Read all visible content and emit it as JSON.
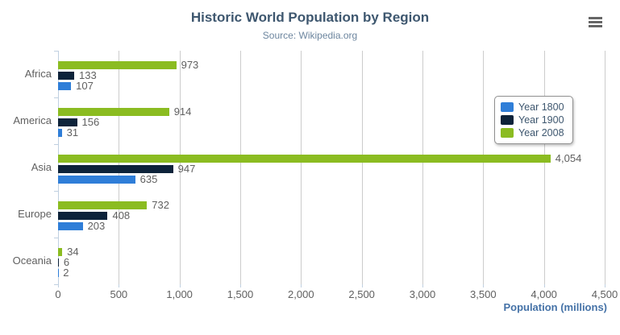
{
  "chart_data": {
    "type": "bar",
    "orientation": "horizontal",
    "title": "Historic World Population by Region",
    "subtitle": "Source: Wikipedia.org",
    "categories": [
      "Africa",
      "America",
      "Asia",
      "Europe",
      "Oceania"
    ],
    "series": [
      {
        "name": "Year 1800",
        "color": "#2f7ed8",
        "values": [
          107,
          31,
          635,
          203,
          2
        ]
      },
      {
        "name": "Year 1900",
        "color": "#0d233a",
        "values": [
          133,
          156,
          947,
          408,
          6
        ]
      },
      {
        "name": "Year 2008",
        "color": "#8bbc21",
        "values": [
          973,
          914,
          4054,
          732,
          34
        ]
      }
    ],
    "bar_order_top_to_bottom": [
      "Year 2008",
      "Year 1900",
      "Year 1800"
    ],
    "xlabel": "Population (millions)",
    "ylabel": "",
    "value_axis": {
      "min": 0,
      "max": 4500,
      "tick_interval": 500,
      "ticks": [
        0,
        500,
        1000,
        1500,
        2000,
        2500,
        3000,
        3500,
        4000,
        4500
      ]
    },
    "grid": "vertical",
    "data_labels": true,
    "legend_position": "right-inside",
    "legend_entries": [
      "Year 1800",
      "Year 1900",
      "Year 2008"
    ]
  },
  "icons": {
    "export_menu": "hamburger-menu-icon"
  },
  "colors": {
    "title": "#3E576F",
    "subtitle": "#6D869F",
    "axis_title": "#4572A7",
    "labels": "#606060",
    "gridline": "#CCCCCC",
    "axis_line": "#C0D0E0",
    "menu_icon": "#666666",
    "series_blue": "#2f7ed8",
    "series_navy": "#0d233a",
    "series_green": "#8bbc21"
  }
}
